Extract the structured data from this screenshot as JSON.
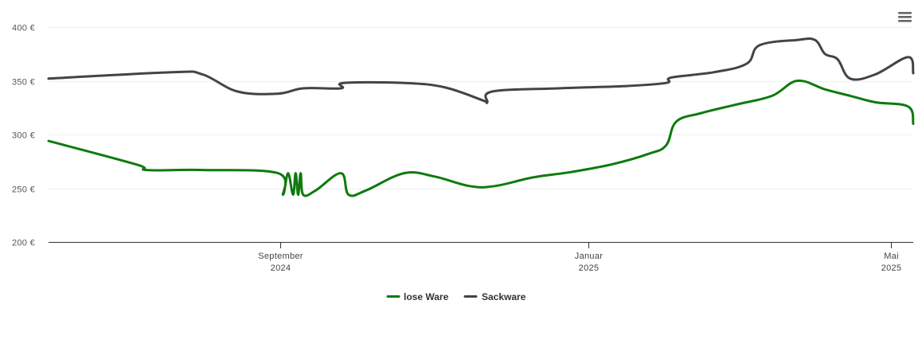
{
  "chart_data": {
    "type": "line",
    "title": "",
    "xlabel": "",
    "ylabel": "",
    "ylim": [
      200,
      400
    ],
    "y_ticks": [
      200,
      250,
      300,
      350,
      400
    ],
    "y_tick_labels": [
      "200 €",
      "250 €",
      "300 €",
      "350 €",
      "400 €"
    ],
    "x_range": [
      "2024-06-01",
      "2025-05-10"
    ],
    "x_ticks": [
      {
        "date": "2024-09-01",
        "line1": "September",
        "line2": "2024"
      },
      {
        "date": "2025-01-01",
        "line1": "Januar",
        "line2": "2025"
      },
      {
        "date": "2025-05-01",
        "line1": "Mai",
        "line2": "2025"
      }
    ],
    "grid": "horizontal",
    "legend_position": "bottom-center",
    "series": [
      {
        "name": "lose Ware",
        "color": "#0f7a0f",
        "points": [
          [
            "2024-06-01",
            294
          ],
          [
            "2024-07-06",
            272
          ],
          [
            "2024-07-10",
            267
          ],
          [
            "2024-08-01",
            267
          ],
          [
            "2024-08-31",
            264
          ],
          [
            "2024-09-02",
            244
          ],
          [
            "2024-09-04",
            264
          ],
          [
            "2024-09-06",
            244
          ],
          [
            "2024-09-07",
            264
          ],
          [
            "2024-09-08",
            244
          ],
          [
            "2024-09-09",
            264
          ],
          [
            "2024-09-10",
            244
          ],
          [
            "2024-09-15",
            248
          ],
          [
            "2024-09-25",
            264
          ],
          [
            "2024-09-28",
            244
          ],
          [
            "2024-10-05",
            248
          ],
          [
            "2024-10-20",
            264
          ],
          [
            "2024-11-01",
            261
          ],
          [
            "2024-11-15",
            252
          ],
          [
            "2024-11-25",
            252
          ],
          [
            "2024-12-10",
            260
          ],
          [
            "2024-12-25",
            265
          ],
          [
            "2025-01-10",
            272
          ],
          [
            "2025-01-25",
            282
          ],
          [
            "2025-02-01",
            290
          ],
          [
            "2025-02-05",
            312
          ],
          [
            "2025-02-15",
            320
          ],
          [
            "2025-03-01",
            328
          ],
          [
            "2025-03-15",
            336
          ],
          [
            "2025-03-25",
            350
          ],
          [
            "2025-04-05",
            342
          ],
          [
            "2025-04-15",
            336
          ],
          [
            "2025-04-25",
            330
          ],
          [
            "2025-05-08",
            326
          ],
          [
            "2025-05-10",
            310
          ]
        ]
      },
      {
        "name": "Sackware",
        "color": "#434348",
        "points": [
          [
            "2024-06-01",
            352
          ],
          [
            "2024-07-20",
            358
          ],
          [
            "2024-08-01",
            356
          ],
          [
            "2024-08-15",
            340
          ],
          [
            "2024-08-31",
            338
          ],
          [
            "2024-09-10",
            343
          ],
          [
            "2024-09-25",
            343
          ],
          [
            "2024-09-26",
            348
          ],
          [
            "2024-10-20",
            348
          ],
          [
            "2024-11-05",
            344
          ],
          [
            "2024-11-20",
            332
          ],
          [
            "2024-11-22",
            330
          ],
          [
            "2024-11-24",
            340
          ],
          [
            "2024-12-20",
            343
          ],
          [
            "2025-01-15",
            345
          ],
          [
            "2025-02-01",
            348
          ],
          [
            "2025-02-03",
            353
          ],
          [
            "2025-02-20",
            358
          ],
          [
            "2025-03-05",
            366
          ],
          [
            "2025-03-10",
            383
          ],
          [
            "2025-03-25",
            388
          ],
          [
            "2025-04-01",
            388
          ],
          [
            "2025-04-05",
            375
          ],
          [
            "2025-04-10",
            370
          ],
          [
            "2025-04-15",
            352
          ],
          [
            "2025-04-25",
            356
          ],
          [
            "2025-05-08",
            372
          ],
          [
            "2025-05-10",
            357
          ]
        ]
      }
    ]
  },
  "legend": {
    "items": [
      {
        "label": "lose Ware",
        "color": "#0f7a0f"
      },
      {
        "label": "Sackware",
        "color": "#434348"
      }
    ]
  },
  "toolbar": {
    "menu_icon": "hamburger-menu-icon"
  }
}
